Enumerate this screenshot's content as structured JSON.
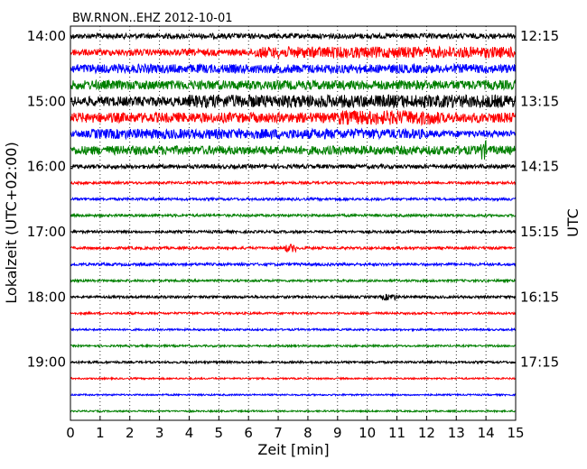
{
  "chart_data": {
    "type": "line",
    "subtype": "dayplot-seismogram",
    "title": "BW.RNON..EHZ 2012-10-01",
    "xlabel": "Zeit  [min]",
    "ylabel_left": "Lokalzeit (UTC+02:00)",
    "ylabel_right": "UTC",
    "xlim": [
      0,
      15
    ],
    "x_ticks": [
      "0",
      "1",
      "2",
      "3",
      "4",
      "5",
      "6",
      "7",
      "8",
      "9",
      "10",
      "11",
      "12",
      "13",
      "14",
      "15"
    ],
    "vertical_grid": "dotted",
    "trace_interval_min": 15,
    "trace_count": 24,
    "trace_colors": [
      "#000000",
      "#ff0000",
      "#0000ff",
      "#008000"
    ],
    "left_tick_labels": [
      "14:00",
      "15:00",
      "16:00",
      "17:00",
      "18:00",
      "19:00"
    ],
    "right_tick_labels": [
      "12:15",
      "13:15",
      "14:15",
      "15:15",
      "16:15",
      "17:15"
    ],
    "relative_amplitude": [
      0.32,
      0.4,
      0.55,
      0.58,
      0.6,
      0.62,
      0.42,
      0.55,
      0.25,
      0.16,
      0.16,
      0.16,
      0.16,
      0.16,
      0.17,
      0.14,
      0.16,
      0.13,
      0.12,
      0.12,
      0.14,
      0.1,
      0.1,
      0.1
    ],
    "bursts": [
      {
        "trace": 1,
        "start_min": 6.2,
        "end_min": 15,
        "amplitude": 0.7
      },
      {
        "trace": 4,
        "start_min": 4.0,
        "end_min": 15,
        "amplitude": 0.8
      },
      {
        "trace": 5,
        "start_min": 9.0,
        "end_min": 12.4,
        "amplitude": 0.9
      },
      {
        "trace": 6,
        "start_min": 0.7,
        "end_min": 12.0,
        "amplitude": 0.62
      },
      {
        "trace": 7,
        "start_min": 13.8,
        "end_min": 14.0,
        "amplitude": 1.2
      },
      {
        "trace": 13,
        "start_min": 7.2,
        "end_min": 7.6,
        "amplitude": 0.5
      },
      {
        "trace": 16,
        "start_min": 10.5,
        "end_min": 11.0,
        "amplitude": 0.4
      }
    ]
  }
}
